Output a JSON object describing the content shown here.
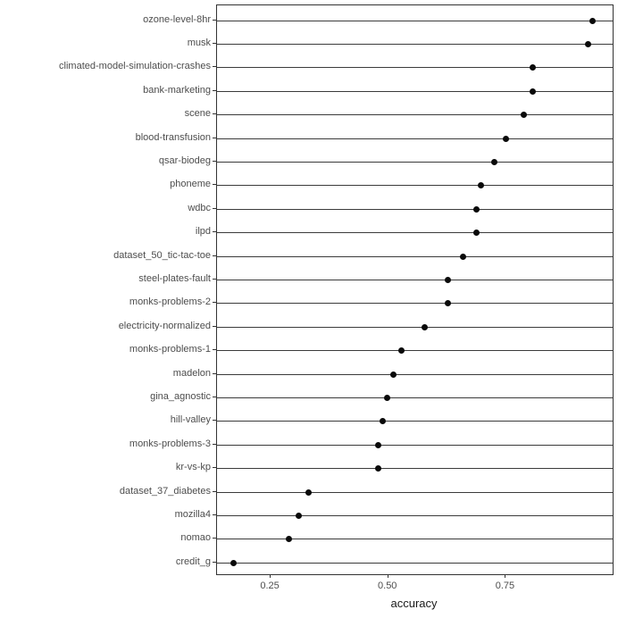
{
  "chart_data": {
    "type": "scatter",
    "variant": "cleveland-dot-plot",
    "title": "",
    "xlabel": "accuracy",
    "ylabel": "",
    "legend": "none",
    "grid": "horizontal-lines-per-category",
    "xlim": [
      0.136,
      0.977
    ],
    "x_ticks": [
      {
        "value": 0.25,
        "label": "0.25"
      },
      {
        "value": 0.5,
        "label": "0.50"
      },
      {
        "value": 0.75,
        "label": "0.75"
      }
    ],
    "categories": [
      "ozone-level-8hr",
      "musk",
      "climated-model-simulation-crashes",
      "bank-marketing",
      "scene",
      "blood-transfusion",
      "qsar-biodeg",
      "phoneme",
      "wdbc",
      "ilpd",
      "dataset_50_tic-tac-toe",
      "steel-plates-fault",
      "monks-problems-2",
      "electricity-normalized",
      "monks-problems-1",
      "madelon",
      "gina_agnostic",
      "hill-valley",
      "monks-problems-3",
      "kr-vs-kp",
      "dataset_37_diabetes",
      "mozilla4",
      "nomao",
      "credit_g"
    ],
    "values": [
      0.935,
      0.925,
      0.807,
      0.807,
      0.788,
      0.75,
      0.725,
      0.697,
      0.688,
      0.688,
      0.659,
      0.627,
      0.627,
      0.578,
      0.528,
      0.51,
      0.498,
      0.489,
      0.479,
      0.479,
      0.33,
      0.309,
      0.288,
      0.172
    ],
    "colors": {
      "point": "#0a0a0a",
      "gridline": "#3b3b3b",
      "panel_border": "#333333",
      "axis_text": "#4d4d4d",
      "axis_title": "#1a1a1a",
      "background": "#ffffff"
    }
  }
}
